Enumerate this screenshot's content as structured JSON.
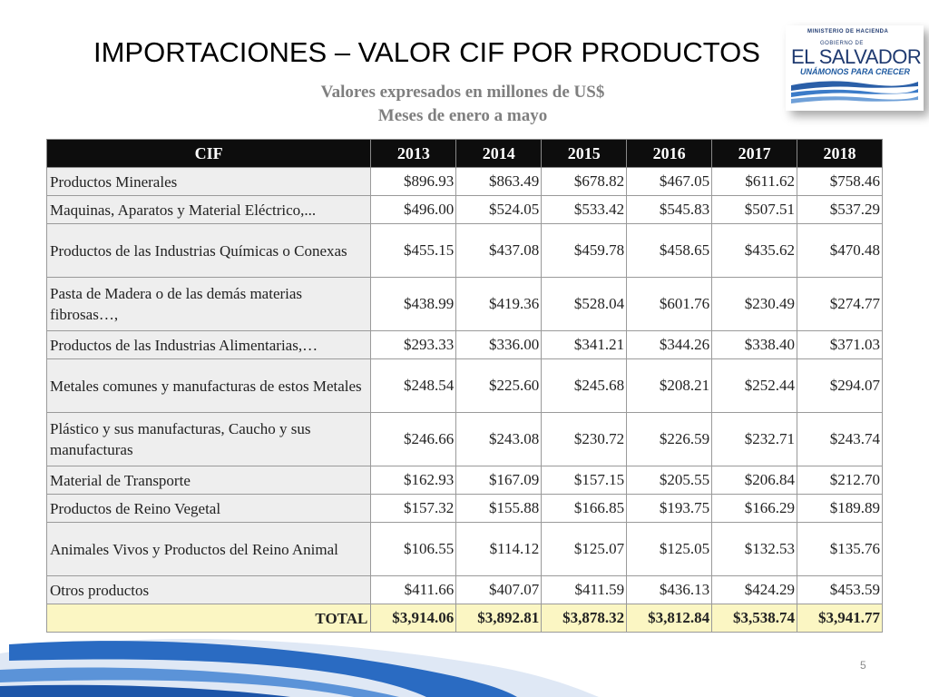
{
  "slide": {
    "title": "IMPORTACIONES – VALOR CIF POR PRODUCTOS",
    "subtitle_line1": "Valores expresados en millones de US$",
    "subtitle_line2": "Meses de enero a mayo",
    "page_number": "5"
  },
  "logo": {
    "line1": "MINISTERIO DE HACIENDA",
    "line2": "GOBIERNO DE",
    "line3": "EL SALVADOR",
    "line4": "UNÁMONOS PARA CRECER"
  },
  "table": {
    "headers": [
      "CIF",
      "2013",
      "2014",
      "2015",
      "2016",
      "2017",
      "2018"
    ],
    "rows": [
      {
        "label": "Productos Minerales",
        "values": [
          "$896.93",
          "$863.49",
          "$678.82",
          "$467.05",
          "$611.62",
          "$758.46"
        ]
      },
      {
        "label": "Maquinas, Aparatos y Material Eléctrico,...",
        "values": [
          "$496.00",
          "$524.05",
          "$533.42",
          "$545.83",
          "$507.51",
          "$537.29"
        ]
      },
      {
        "label": "Productos de las Industrias Químicas o Conexas",
        "values": [
          "$455.15",
          "$437.08",
          "$459.78",
          "$458.65",
          "$435.62",
          "$470.48"
        ]
      },
      {
        "label": "Pasta de Madera o de las demás materias fibrosas…,",
        "values": [
          "$438.99",
          "$419.36",
          "$528.04",
          "$601.76",
          "$230.49",
          "$274.77"
        ]
      },
      {
        "label": "Productos de las Industrias Alimentarias,…",
        "values": [
          "$293.33",
          "$336.00",
          "$341.21",
          "$344.26",
          "$338.40",
          "$371.03"
        ]
      },
      {
        "label": "Metales comunes y manufacturas de estos Metales",
        "values": [
          "$248.54",
          "$225.60",
          "$245.68",
          "$208.21",
          "$252.44",
          "$294.07"
        ]
      },
      {
        "label": "Plástico y sus manufacturas, Caucho y sus manufacturas",
        "values": [
          "$246.66",
          "$243.08",
          "$230.72",
          "$226.59",
          "$232.71",
          "$243.74"
        ]
      },
      {
        "label": "Material de Transporte",
        "values": [
          "$162.93",
          "$167.09",
          "$157.15",
          "$205.55",
          "$206.84",
          "$212.70"
        ]
      },
      {
        "label": "Productos de Reino Vegetal",
        "values": [
          "$157.32",
          "$155.88",
          "$166.85",
          "$193.75",
          "$166.29",
          "$189.89"
        ]
      },
      {
        "label": "Animales Vivos y Productos del Reino Animal",
        "values": [
          "$106.55",
          "$114.12",
          "$125.07",
          "$125.05",
          "$132.53",
          "$135.76"
        ]
      },
      {
        "label": "Otros productos",
        "values": [
          "$411.66",
          "$407.07",
          "$411.59",
          "$436.13",
          "$424.29",
          "$453.59"
        ]
      }
    ],
    "total": {
      "label": "TOTAL",
      "values": [
        "$3,914.06",
        "$3,892.81",
        "$3,878.32",
        "$3,812.84",
        "$3,538.74",
        "$3,941.77"
      ]
    }
  },
  "colors": {
    "header_bg": "#0d0d0d",
    "label_bg": "#eeeeee",
    "total_bg": "#fbf6c3",
    "wave_blue": "#1f5fb5",
    "subtitle_gray": "#7f7f7f"
  }
}
